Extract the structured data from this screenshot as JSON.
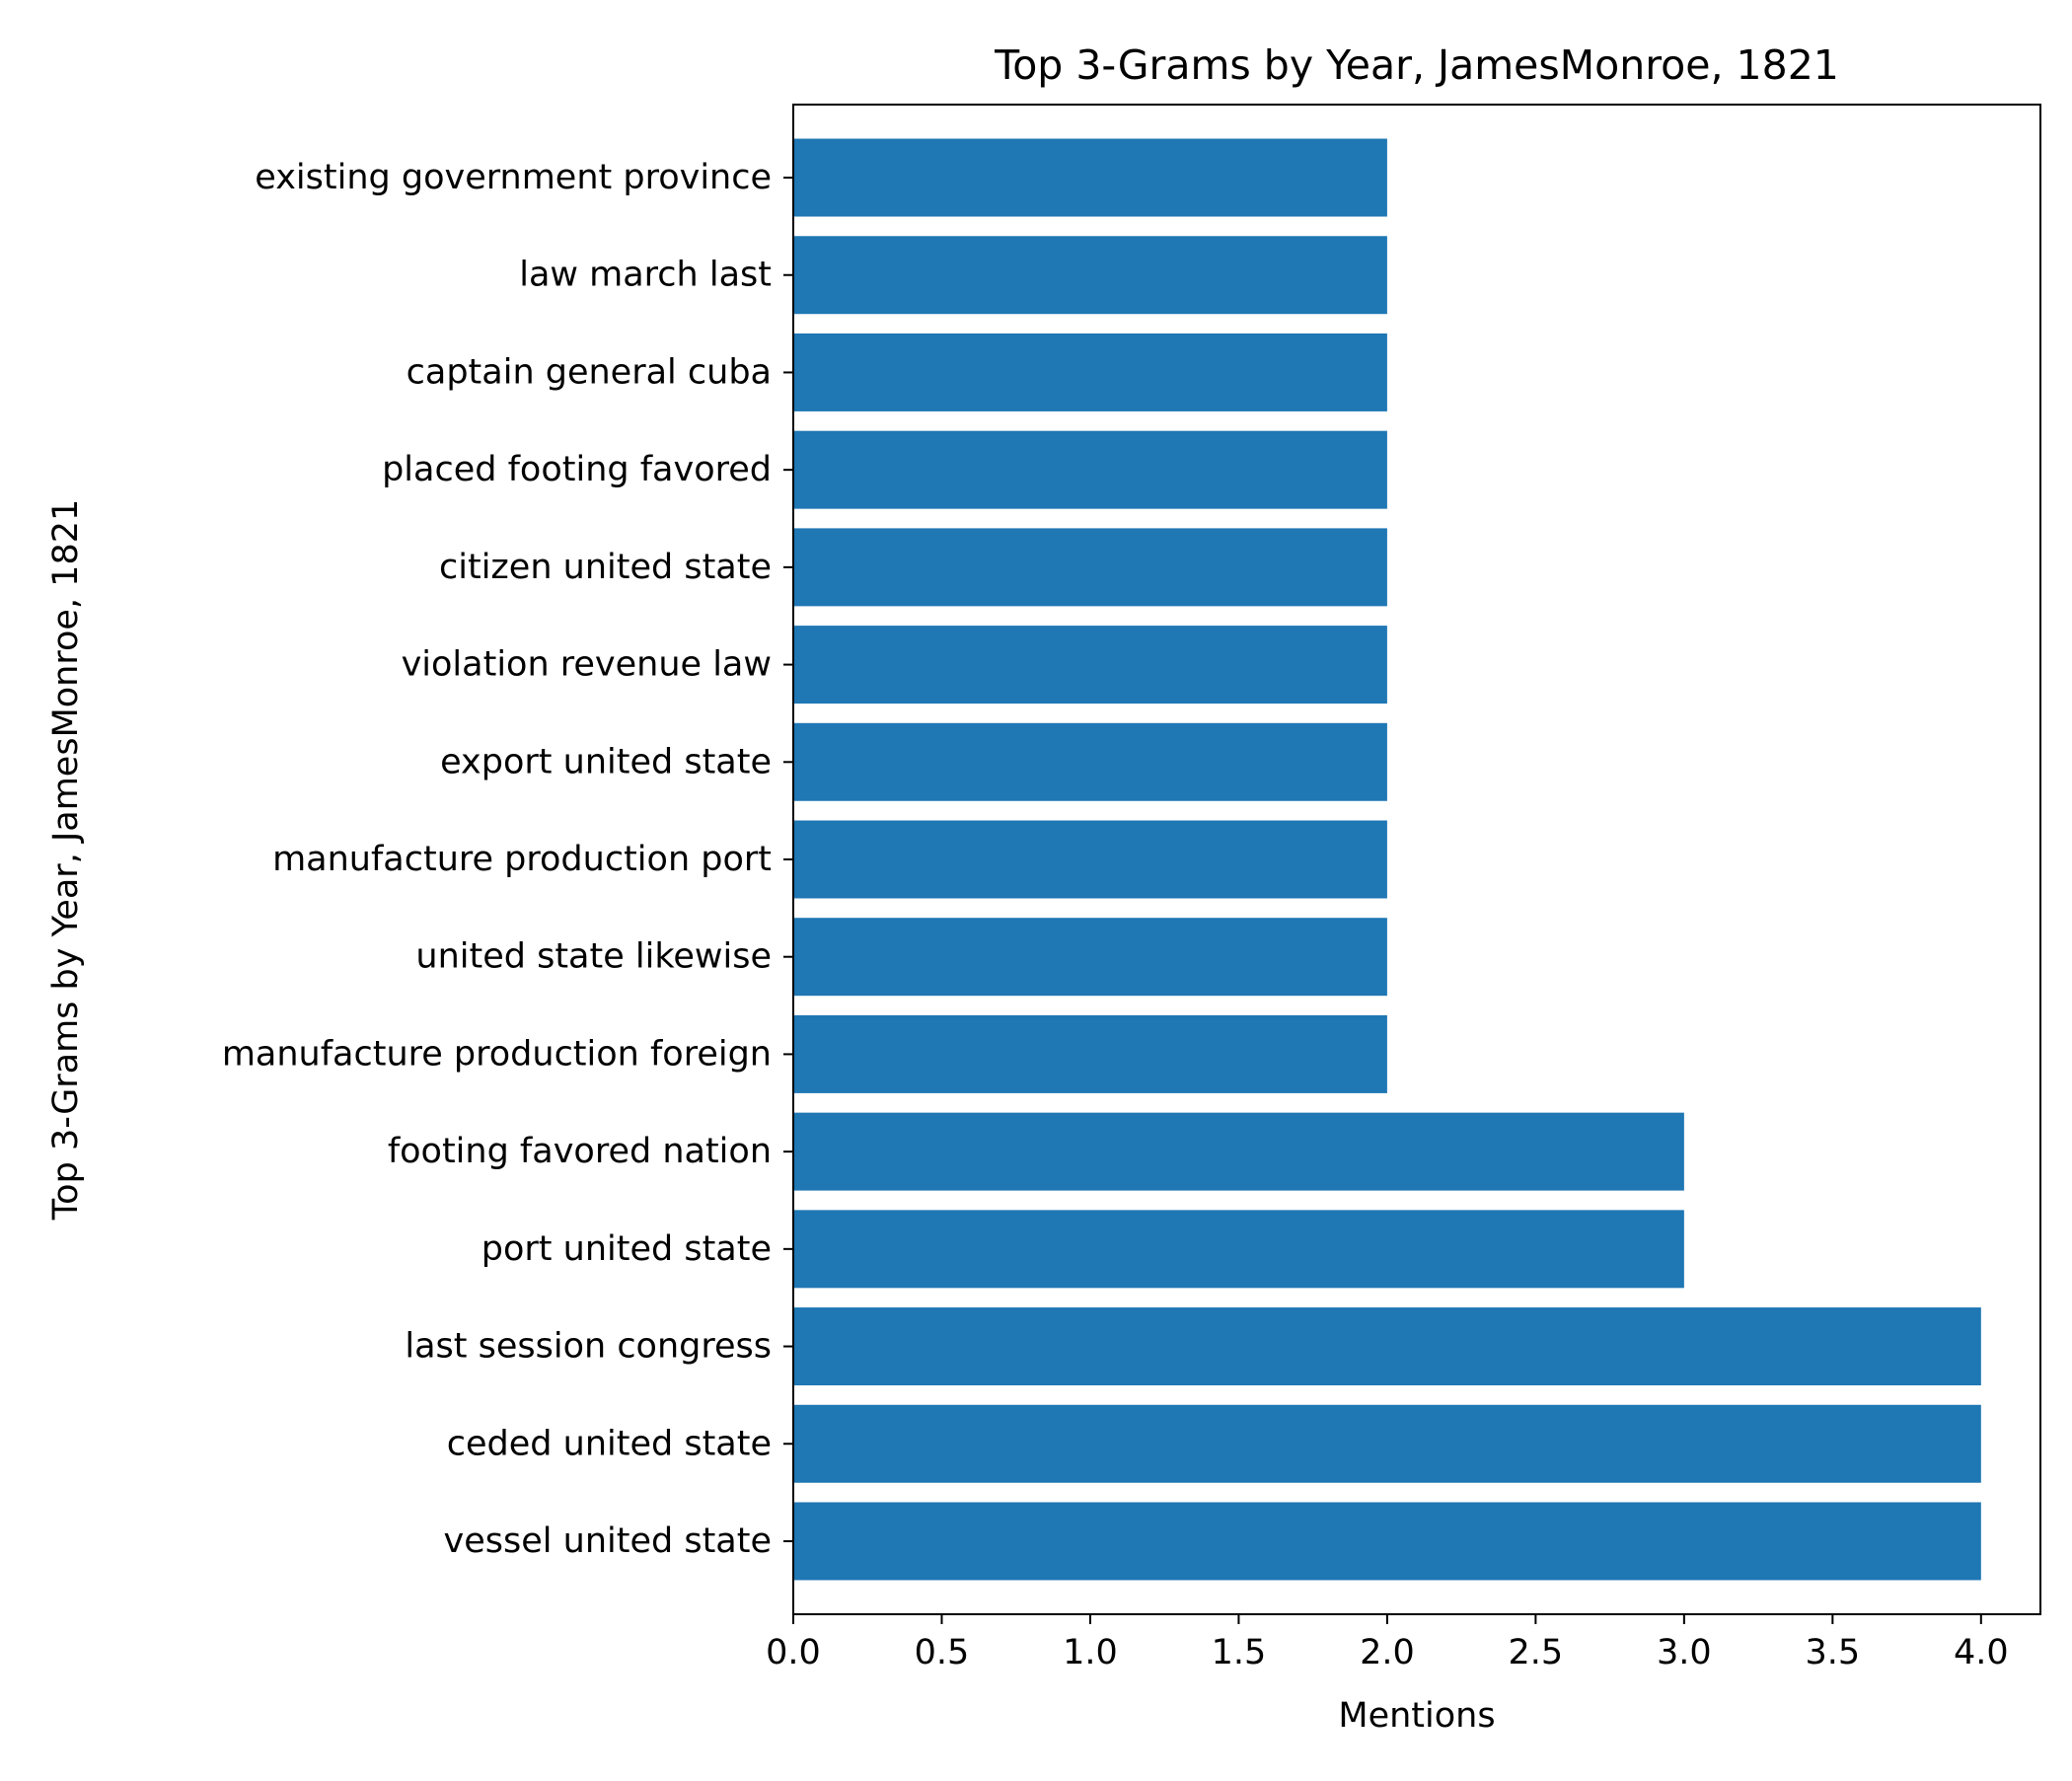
{
  "chart_data": {
    "type": "bar",
    "orientation": "horizontal",
    "title": "Top 3-Grams by Year, JamesMonroe, 1821",
    "xlabel": "Mentions",
    "ylabel": "Top 3-Grams by Year, JamesMonroe, 1821",
    "xlim": [
      0,
      4.2
    ],
    "xticks": [
      "0.0",
      "0.5",
      "1.0",
      "1.5",
      "2.0",
      "2.5",
      "3.0",
      "3.5",
      "4.0"
    ],
    "xtick_values": [
      0,
      0.5,
      1,
      1.5,
      2,
      2.5,
      3,
      3.5,
      4
    ],
    "categories": [
      "vessel united state",
      "ceded united state",
      "last session congress",
      "port united state",
      "footing favored nation",
      "manufacture production foreign",
      "united state likewise",
      "manufacture production port",
      "export united state",
      "violation revenue law",
      "citizen united state",
      "placed footing favored",
      "captain general cuba",
      "law march last",
      "existing government province"
    ],
    "values": [
      4,
      4,
      4,
      3,
      3,
      2,
      2,
      2,
      2,
      2,
      2,
      2,
      2,
      2,
      2
    ],
    "bar_color": "#1f77b4",
    "grid": false,
    "legend": "none"
  }
}
